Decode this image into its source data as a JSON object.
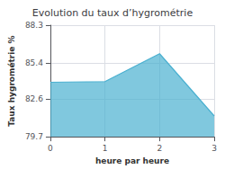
{
  "chart_data": {
    "type": "area",
    "title": "Evolution du taux d’hygrométrie",
    "xlabel": "heure par heure",
    "ylabel": "Taux hygrométrie %",
    "x": [
      0,
      1,
      2,
      3
    ],
    "values": [
      83.9,
      83.95,
      86.1,
      81.3
    ],
    "xlim": [
      0,
      3
    ],
    "xticks": [
      0,
      1,
      2,
      3
    ],
    "ylim": [
      79.7,
      88.3
    ],
    "yticks": [
      79.7,
      82.6,
      85.4,
      88.3
    ],
    "grid": true,
    "color": "#4ab0d0"
  }
}
